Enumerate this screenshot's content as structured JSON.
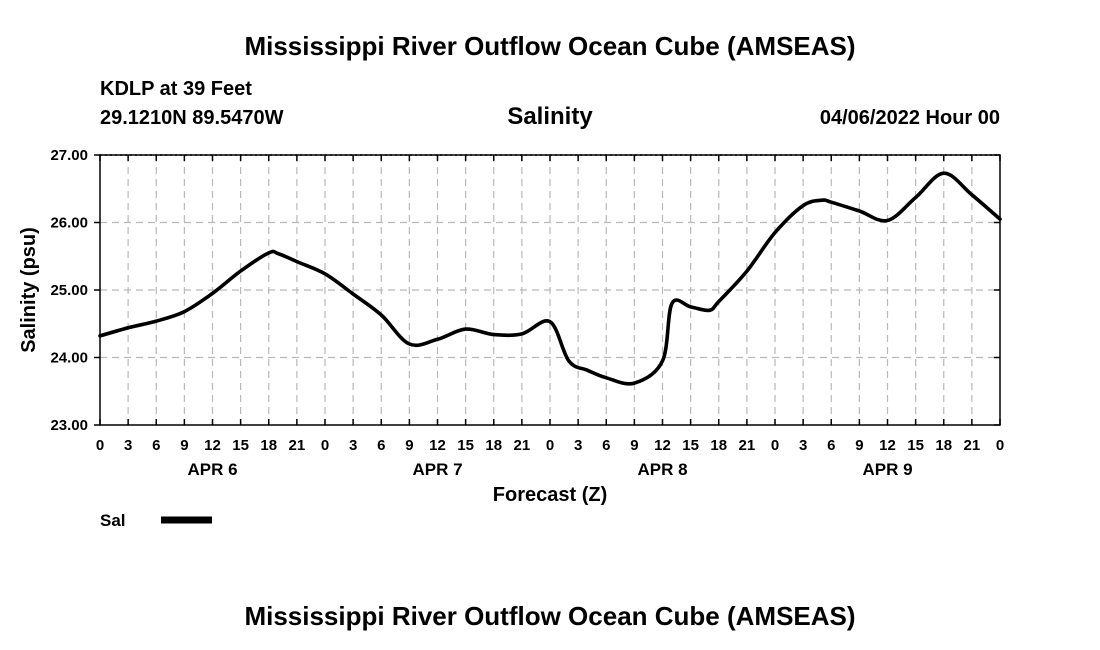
{
  "header": {
    "title": "Mississippi River Outflow Ocean Cube (AMSEAS)",
    "station": "KDLP at 39 Feet",
    "coords": "29.1210N  89.5470W",
    "date": "04/06/2022 Hour 00"
  },
  "footer": {
    "title": "Mississippi River Outflow Ocean Cube (AMSEAS)"
  },
  "chart_data": {
    "type": "line",
    "title": "Salinity",
    "ylabel": "Salinity (psu)",
    "xlabel": "Forecast (Z)",
    "ylim": [
      23.0,
      27.0
    ],
    "yticks": [
      "23.00",
      "24.00",
      "25.00",
      "26.00",
      "27.00"
    ],
    "x_range_hours": [
      0,
      96
    ],
    "x_tick_labels": [
      "0",
      "3",
      "6",
      "9",
      "12",
      "15",
      "18",
      "21",
      "0",
      "3",
      "6",
      "9",
      "12",
      "15",
      "18",
      "21",
      "0",
      "3",
      "6",
      "9",
      "12",
      "15",
      "18",
      "21",
      "0",
      "3",
      "6",
      "9",
      "12",
      "15",
      "18",
      "21",
      "0"
    ],
    "day_labels": [
      {
        "label": "APR 6",
        "hour": 12
      },
      {
        "label": "APR 7",
        "hour": 36
      },
      {
        "label": "APR 8",
        "hour": 60
      },
      {
        "label": "APR 9",
        "hour": 84
      }
    ],
    "grid": true,
    "series": [
      {
        "name": "Sal",
        "x": [
          0,
          3,
          6,
          9,
          12,
          15,
          18,
          19,
          21,
          24,
          27,
          30,
          33,
          36,
          39,
          42,
          45,
          48,
          50,
          52,
          54,
          57,
          60,
          61,
          63,
          65,
          66,
          69,
          72,
          75,
          77,
          78,
          81,
          84,
          87,
          90,
          93,
          96
        ],
        "y": [
          24.32,
          24.44,
          24.54,
          24.68,
          24.95,
          25.28,
          25.55,
          25.54,
          25.42,
          25.24,
          24.94,
          24.63,
          24.2,
          24.27,
          24.42,
          24.34,
          24.35,
          24.53,
          23.95,
          23.81,
          23.7,
          23.62,
          23.95,
          24.8,
          24.75,
          24.7,
          24.83,
          25.28,
          25.85,
          26.25,
          26.33,
          26.3,
          26.17,
          26.03,
          26.37,
          26.73,
          26.41,
          26.05
        ]
      }
    ],
    "legend": {
      "label": "Sal",
      "position": "bottom-left"
    }
  }
}
